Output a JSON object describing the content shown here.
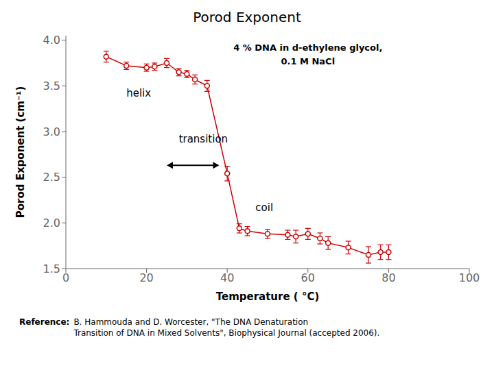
{
  "chart_data": {
    "type": "line",
    "title": "Porod Exponent",
    "x_label": "Temperature (  °C)",
    "y_label": "Porod Exponent (cm⁻¹)",
    "x": [
      10,
      15,
      20,
      22,
      25,
      28,
      30,
      32,
      35,
      40,
      43,
      45,
      50,
      55,
      57,
      60,
      63,
      65,
      70,
      75,
      78,
      80
    ],
    "series": [
      {
        "name": "Porod Exponent",
        "color": "#cc0000",
        "marker": "circle",
        "line_style": "solid",
        "values": [
          3.82,
          3.72,
          3.7,
          3.71,
          3.75,
          3.65,
          3.63,
          3.57,
          3.5,
          2.54,
          1.94,
          1.91,
          1.88,
          1.87,
          1.85,
          1.88,
          1.83,
          1.78,
          1.73,
          1.65,
          1.68,
          1.68
        ],
        "error": [
          0.06,
          0.04,
          0.04,
          0.04,
          0.05,
          0.04,
          0.04,
          0.05,
          0.06,
          0.08,
          0.05,
          0.05,
          0.05,
          0.05,
          0.07,
          0.06,
          0.06,
          0.07,
          0.07,
          0.09,
          0.08,
          0.08
        ]
      }
    ],
    "xlim": [
      0,
      100
    ],
    "ylim": [
      1.5,
      4.05
    ],
    "xticks": [
      0,
      20,
      40,
      60,
      80,
      100
    ],
    "yticks": [
      1.5,
      {
        "value": 2.0,
        "label": "2.0"
      },
      2.5,
      {
        "value": 3.0,
        "label": "3.0"
      },
      3.5,
      {
        "value": 4.0,
        "label": "4.0"
      }
    ],
    "grid": false,
    "legend": "none",
    "text_box": [
      "4 % DNA in d-ethylene glycol,",
      "0.1 M NaCl"
    ],
    "annotations": [
      {
        "text": "helix",
        "x": 15,
        "y": 3.42
      },
      {
        "text": "transition",
        "x": 28,
        "y": 2.92
      },
      {
        "text": "coil",
        "x": 47,
        "y": 2.17
      }
    ],
    "arrows": [
      {
        "x1": 25,
        "x2": 38,
        "y": 2.63
      }
    ],
    "reference_label": "Reference:",
    "reference_text": "B. Hammouda and D. Worcester, \"The DNA Denaturation\nTransition of DNA in Mixed Solvents\", Biophysical Journal (accepted 2006)."
  }
}
